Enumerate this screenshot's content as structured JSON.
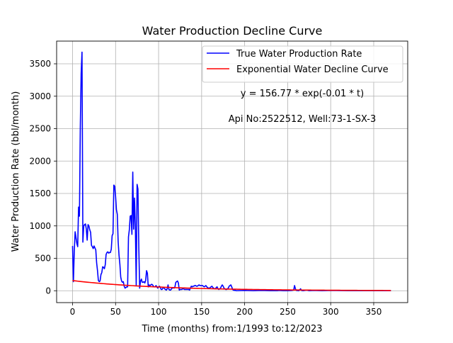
{
  "chart_data": {
    "type": "line",
    "title": "Water Production Decline Curve",
    "xlabel": "Time (months) from:1/1993 to:12/2023",
    "ylabel": "Water Production Rate (bbl/month)",
    "xlim": [
      -18.5,
      389.5
    ],
    "ylim": [
      -183,
      3850
    ],
    "xticks": [
      0,
      50,
      100,
      150,
      200,
      250,
      300,
      350
    ],
    "yticks": [
      0,
      500,
      1000,
      1500,
      2000,
      2500,
      3000,
      3500
    ],
    "grid": true,
    "legend_position": "top-right",
    "annotations": [
      "y = 156.77 * exp(-0.01 * t)",
      "Api No:2522512, Well:73-1-SX-3"
    ],
    "series": [
      {
        "name": "True Water Production Rate",
        "color": "#0000ff",
        "points": [
          [
            0,
            690
          ],
          [
            1,
            140
          ],
          [
            2,
            600
          ],
          [
            3,
            910
          ],
          [
            4,
            820
          ],
          [
            5,
            730
          ],
          [
            6,
            680
          ],
          [
            7,
            1290
          ],
          [
            8,
            1150
          ],
          [
            9,
            2500
          ],
          [
            10,
            3350
          ],
          [
            11,
            3680
          ],
          [
            12,
            750
          ],
          [
            13,
            1000
          ],
          [
            14,
            1020
          ],
          [
            15,
            1030
          ],
          [
            16,
            950
          ],
          [
            17,
            780
          ],
          [
            18,
            1020
          ],
          [
            19,
            1000
          ],
          [
            20,
            940
          ],
          [
            21,
            900
          ],
          [
            22,
            700
          ],
          [
            23,
            680
          ],
          [
            24,
            650
          ],
          [
            25,
            690
          ],
          [
            26,
            660
          ],
          [
            27,
            630
          ],
          [
            28,
            430
          ],
          [
            29,
            310
          ],
          [
            30,
            160
          ],
          [
            31,
            140
          ],
          [
            32,
            150
          ],
          [
            33,
            250
          ],
          [
            34,
            280
          ],
          [
            35,
            370
          ],
          [
            36,
            360
          ],
          [
            37,
            340
          ],
          [
            38,
            400
          ],
          [
            39,
            560
          ],
          [
            40,
            590
          ],
          [
            41,
            600
          ],
          [
            42,
            580
          ],
          [
            43,
            590
          ],
          [
            44,
            590
          ],
          [
            45,
            640
          ],
          [
            46,
            850
          ],
          [
            47,
            880
          ],
          [
            48,
            1630
          ],
          [
            49,
            1610
          ],
          [
            50,
            1460
          ],
          [
            51,
            1250
          ],
          [
            52,
            1180
          ],
          [
            53,
            760
          ],
          [
            54,
            550
          ],
          [
            55,
            410
          ],
          [
            56,
            210
          ],
          [
            57,
            150
          ],
          [
            58,
            130
          ],
          [
            59,
            140
          ],
          [
            60,
            70
          ],
          [
            61,
            40
          ],
          [
            62,
            50
          ],
          [
            63,
            60
          ],
          [
            64,
            60
          ],
          [
            65,
            830
          ],
          [
            66,
            940
          ],
          [
            67,
            1150
          ],
          [
            68,
            1160
          ],
          [
            69,
            870
          ],
          [
            70,
            1830
          ],
          [
            71,
            950
          ],
          [
            72,
            1430
          ],
          [
            73,
            990
          ],
          [
            74,
            80
          ],
          [
            75,
            1640
          ],
          [
            76,
            1570
          ],
          [
            77,
            670
          ],
          [
            78,
            40
          ],
          [
            79,
            150
          ],
          [
            80,
            180
          ],
          [
            81,
            130
          ],
          [
            82,
            130
          ],
          [
            83,
            140
          ],
          [
            84,
            120
          ],
          [
            85,
            160
          ],
          [
            86,
            310
          ],
          [
            87,
            270
          ],
          [
            88,
            60
          ],
          [
            89,
            90
          ],
          [
            90,
            80
          ],
          [
            91,
            90
          ],
          [
            92,
            100
          ],
          [
            93,
            90
          ],
          [
            94,
            70
          ],
          [
            95,
            60
          ],
          [
            96,
            60
          ],
          [
            97,
            80
          ],
          [
            98,
            60
          ],
          [
            99,
            40
          ],
          [
            100,
            60
          ],
          [
            101,
            70
          ],
          [
            102,
            50
          ],
          [
            103,
            20
          ],
          [
            104,
            20
          ],
          [
            105,
            40
          ],
          [
            106,
            50
          ],
          [
            107,
            30
          ],
          [
            108,
            20
          ],
          [
            109,
            10
          ],
          [
            110,
            30
          ],
          [
            111,
            90
          ],
          [
            112,
            20
          ],
          [
            113,
            10
          ],
          [
            114,
            10
          ],
          [
            115,
            30
          ],
          [
            116,
            40
          ],
          [
            117,
            50
          ],
          [
            118,
            40
          ],
          [
            119,
            60
          ],
          [
            120,
            130
          ],
          [
            121,
            140
          ],
          [
            122,
            150
          ],
          [
            123,
            120
          ],
          [
            124,
            10
          ],
          [
            125,
            20
          ],
          [
            126,
            20
          ],
          [
            127,
            20
          ],
          [
            128,
            30
          ],
          [
            129,
            30
          ],
          [
            130,
            20
          ],
          [
            131,
            20
          ],
          [
            132,
            20
          ],
          [
            133,
            20
          ],
          [
            134,
            20
          ],
          [
            135,
            20
          ],
          [
            136,
            10
          ],
          [
            137,
            40
          ],
          [
            138,
            70
          ],
          [
            139,
            60
          ],
          [
            140,
            70
          ],
          [
            141,
            70
          ],
          [
            142,
            80
          ],
          [
            143,
            80
          ],
          [
            144,
            70
          ],
          [
            145,
            70
          ],
          [
            146,
            80
          ],
          [
            147,
            90
          ],
          [
            148,
            80
          ],
          [
            149,
            80
          ],
          [
            150,
            80
          ],
          [
            151,
            80
          ],
          [
            152,
            70
          ],
          [
            153,
            60
          ],
          [
            154,
            70
          ],
          [
            155,
            80
          ],
          [
            156,
            60
          ],
          [
            157,
            50
          ],
          [
            158,
            40
          ],
          [
            159,
            40
          ],
          [
            160,
            50
          ],
          [
            161,
            60
          ],
          [
            162,
            70
          ],
          [
            163,
            50
          ],
          [
            164,
            40
          ],
          [
            165,
            30
          ],
          [
            166,
            30
          ],
          [
            167,
            50
          ],
          [
            168,
            60
          ],
          [
            169,
            30
          ],
          [
            170,
            20
          ],
          [
            171,
            30
          ],
          [
            172,
            40
          ],
          [
            173,
            70
          ],
          [
            174,
            90
          ],
          [
            175,
            70
          ],
          [
            176,
            40
          ],
          [
            177,
            30
          ],
          [
            178,
            20
          ],
          [
            179,
            20
          ],
          [
            180,
            30
          ],
          [
            181,
            40
          ],
          [
            182,
            70
          ],
          [
            183,
            80
          ],
          [
            184,
            90
          ],
          [
            185,
            60
          ],
          [
            186,
            20
          ],
          [
            187,
            10
          ],
          [
            188,
            5
          ],
          [
            189,
            10
          ],
          [
            190,
            0
          ],
          [
            200,
            5
          ],
          [
            210,
            0
          ],
          [
            220,
            5
          ],
          [
            230,
            0
          ],
          [
            238,
            0
          ],
          [
            240,
            5
          ],
          [
            245,
            0
          ],
          [
            250,
            0
          ],
          [
            255,
            5
          ],
          [
            257,
            10
          ],
          [
            258,
            80
          ],
          [
            259,
            30
          ],
          [
            260,
            5
          ],
          [
            263,
            0
          ],
          [
            265,
            30
          ],
          [
            266,
            5
          ],
          [
            268,
            0
          ],
          [
            272,
            10
          ],
          [
            275,
            0
          ],
          [
            280,
            5
          ],
          [
            290,
            0
          ],
          [
            300,
            5
          ],
          [
            320,
            0
          ],
          [
            340,
            0
          ],
          [
            360,
            0
          ],
          [
            370,
            0
          ]
        ]
      },
      {
        "name": "Exponential Water Decline Curve",
        "color": "#ff0000",
        "formula": "156.77 * exp(-0.01 * t)",
        "a": 156.77,
        "b": 0.01,
        "t_range": [
          0,
          370
        ]
      }
    ]
  }
}
